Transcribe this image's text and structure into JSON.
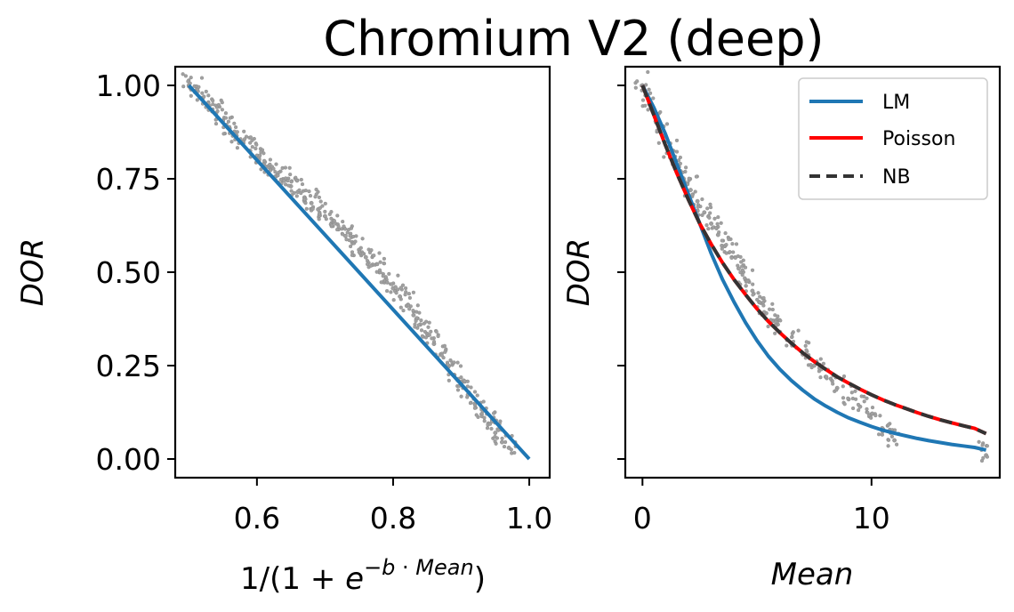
{
  "figure": {
    "title": "Chromium V2 (deep)"
  },
  "colors": {
    "scatter": "#a0a0a0",
    "lm": "#1f77b4",
    "poisson": "#ff0000",
    "nb": "#333333"
  },
  "chart_data": [
    {
      "type": "scatter",
      "name": "left-panel",
      "xlabel": "1/(1 + e^(−b · Mean))",
      "ylabel": "DOR",
      "xlim": [
        0.48,
        1.03
      ],
      "ylim": [
        -0.05,
        1.05
      ],
      "xticks": [
        0.6,
        0.8,
        1.0
      ],
      "xtick_labels": [
        "0.6",
        "0.8",
        "1.0"
      ],
      "yticks": [
        0.0,
        0.25,
        0.5,
        0.75,
        1.0
      ],
      "ytick_labels": [
        "0.00",
        "0.25",
        "0.50",
        "0.75",
        "1.00"
      ],
      "grid": false,
      "scatter_points": [
        [
          0.5,
          1.0
        ],
        [
          0.51,
          0.985
        ],
        [
          0.52,
          0.965
        ],
        [
          0.53,
          0.945
        ],
        [
          0.54,
          0.925
        ],
        [
          0.55,
          0.905
        ],
        [
          0.56,
          0.885
        ],
        [
          0.57,
          0.865
        ],
        [
          0.58,
          0.845
        ],
        [
          0.59,
          0.825
        ],
        [
          0.6,
          0.805
        ],
        [
          0.61,
          0.79
        ],
        [
          0.62,
          0.775
        ],
        [
          0.63,
          0.76
        ],
        [
          0.64,
          0.745
        ],
        [
          0.65,
          0.73
        ],
        [
          0.66,
          0.715
        ],
        [
          0.67,
          0.7
        ],
        [
          0.68,
          0.685
        ],
        [
          0.69,
          0.668
        ],
        [
          0.7,
          0.65
        ],
        [
          0.71,
          0.632
        ],
        [
          0.72,
          0.615
        ],
        [
          0.73,
          0.597
        ],
        [
          0.74,
          0.58
        ],
        [
          0.75,
          0.56
        ],
        [
          0.76,
          0.54
        ],
        [
          0.77,
          0.52
        ],
        [
          0.78,
          0.5
        ],
        [
          0.79,
          0.48
        ],
        [
          0.8,
          0.457
        ],
        [
          0.81,
          0.435
        ],
        [
          0.82,
          0.41
        ],
        [
          0.83,
          0.385
        ],
        [
          0.84,
          0.36
        ],
        [
          0.85,
          0.335
        ],
        [
          0.86,
          0.308
        ],
        [
          0.87,
          0.28
        ],
        [
          0.88,
          0.252
        ],
        [
          0.89,
          0.225
        ],
        [
          0.9,
          0.198
        ],
        [
          0.91,
          0.172
        ],
        [
          0.92,
          0.148
        ],
        [
          0.93,
          0.12
        ],
        [
          0.94,
          0.095
        ],
        [
          0.95,
          0.07
        ],
        [
          0.96,
          0.045
        ],
        [
          0.97,
          0.03
        ]
      ],
      "series": [
        {
          "name": "LM",
          "x": [
            0.5,
            1.0
          ],
          "y": [
            1.0,
            0.0
          ]
        }
      ]
    },
    {
      "type": "line",
      "name": "right-panel",
      "xlabel": "Mean",
      "ylabel": "DOR",
      "xlim": [
        -0.75,
        15.6
      ],
      "ylim": [
        -0.05,
        1.05
      ],
      "xticks": [
        0,
        10
      ],
      "xtick_labels": [
        "0",
        "10"
      ],
      "yticks": [
        0.0,
        0.25,
        0.5,
        0.75,
        1.0
      ],
      "grid": false,
      "legend": {
        "position": "top-right",
        "entries": [
          "LM",
          "Poisson",
          "NB"
        ]
      },
      "scatter_points": [
        [
          0.0,
          1.0
        ],
        [
          0.3,
          0.95
        ],
        [
          0.6,
          0.9
        ],
        [
          0.9,
          0.86
        ],
        [
          1.2,
          0.82
        ],
        [
          1.5,
          0.78
        ],
        [
          1.8,
          0.75
        ],
        [
          2.1,
          0.72
        ],
        [
          2.4,
          0.69
        ],
        [
          2.7,
          0.66
        ],
        [
          3.0,
          0.63
        ],
        [
          3.3,
          0.6
        ],
        [
          3.6,
          0.57
        ],
        [
          3.9,
          0.54
        ],
        [
          4.2,
          0.51
        ],
        [
          4.5,
          0.48
        ],
        [
          4.8,
          0.45
        ],
        [
          5.1,
          0.42
        ],
        [
          5.4,
          0.39
        ],
        [
          5.7,
          0.37
        ],
        [
          6.0,
          0.34
        ],
        [
          6.5,
          0.31
        ],
        [
          7.0,
          0.28
        ],
        [
          7.5,
          0.25
        ],
        [
          8.0,
          0.22
        ],
        [
          8.5,
          0.19
        ],
        [
          9.0,
          0.16
        ],
        [
          9.5,
          0.14
        ],
        [
          10.0,
          0.12
        ],
        [
          10.5,
          0.08
        ],
        [
          11.0,
          0.05
        ],
        [
          15.0,
          0.01
        ]
      ],
      "series": [
        {
          "name": "LM",
          "x": [
            0,
            0.5,
            1,
            1.5,
            2,
            2.5,
            3,
            3.5,
            4,
            4.5,
            5,
            5.5,
            6,
            6.5,
            7,
            7.5,
            8,
            8.5,
            9,
            9.5,
            10,
            10.5,
            11,
            11.5,
            12,
            12.5,
            13,
            13.5,
            14,
            14.5,
            15
          ],
          "y": [
            1.0,
            0.94,
            0.87,
            0.79,
            0.71,
            0.63,
            0.55,
            0.48,
            0.42,
            0.365,
            0.317,
            0.275,
            0.24,
            0.21,
            0.184,
            0.161,
            0.142,
            0.125,
            0.11,
            0.098,
            0.087,
            0.077,
            0.069,
            0.062,
            0.055,
            0.049,
            0.044,
            0.039,
            0.035,
            0.031,
            0.024
          ]
        },
        {
          "name": "Poisson",
          "x": [
            0,
            0.5,
            1,
            1.5,
            2,
            2.5,
            3,
            3.5,
            4,
            4.5,
            5,
            5.5,
            6,
            6.5,
            7,
            7.5,
            8,
            8.5,
            9,
            9.5,
            10,
            10.5,
            11,
            11.5,
            12,
            12.5,
            13,
            13.5,
            14,
            14.5,
            15
          ],
          "y": [
            1.0,
            0.92,
            0.84,
            0.765,
            0.695,
            0.63,
            0.575,
            0.525,
            0.48,
            0.44,
            0.402,
            0.368,
            0.338,
            0.31,
            0.284,
            0.261,
            0.24,
            0.22,
            0.203,
            0.187,
            0.172,
            0.158,
            0.146,
            0.135,
            0.124,
            0.114,
            0.105,
            0.097,
            0.089,
            0.082,
            0.068
          ]
        },
        {
          "name": "NB",
          "x": [
            0,
            0.5,
            1,
            1.5,
            2,
            2.5,
            3,
            3.5,
            4,
            4.5,
            5,
            5.5,
            6,
            6.5,
            7,
            7.5,
            8,
            8.5,
            9,
            9.5,
            10,
            10.5,
            11,
            11.5,
            12,
            12.5,
            13,
            13.5,
            14,
            14.5,
            15
          ],
          "y": [
            1.0,
            0.92,
            0.84,
            0.765,
            0.695,
            0.63,
            0.575,
            0.525,
            0.48,
            0.44,
            0.402,
            0.368,
            0.338,
            0.31,
            0.284,
            0.261,
            0.24,
            0.22,
            0.203,
            0.187,
            0.172,
            0.158,
            0.146,
            0.135,
            0.124,
            0.114,
            0.105,
            0.097,
            0.089,
            0.082,
            0.068
          ]
        }
      ]
    }
  ]
}
